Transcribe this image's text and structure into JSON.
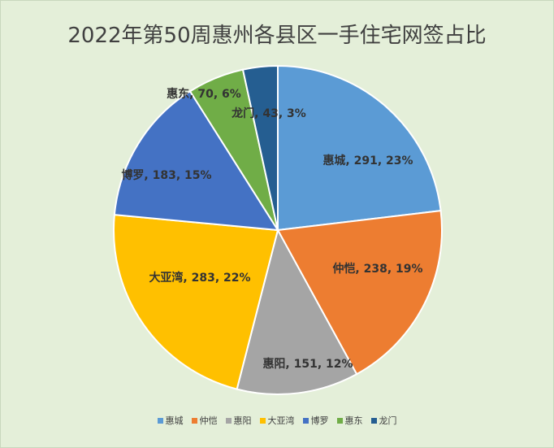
{
  "chart_data": {
    "type": "pie",
    "title": "2022年第50周惠州各县区一手住宅网签占比",
    "categories": [
      "惠城",
      "仲恺",
      "惠阳",
      "大亚湾",
      "博罗",
      "惠东",
      "龙门"
    ],
    "values": [
      291,
      238,
      151,
      283,
      183,
      70,
      43
    ],
    "percent_labels": [
      "23%",
      "19%",
      "12%",
      "22%",
      "15%",
      "6%",
      "3%"
    ],
    "data_labels": [
      "惠城, 291, 23%",
      "仲恺, 238, 19%",
      "惠阳, 151, 12%",
      "大亚湾, 283, 22%",
      "博罗, 183, 15%",
      "惠东, 70, 6%",
      "龙门, 43, 3%"
    ],
    "colors": [
      "#5b9bd5",
      "#ed7d31",
      "#a5a5a5",
      "#ffc000",
      "#4472c4",
      "#70ad47",
      "#255e91"
    ],
    "legend_position": "bottom",
    "start_angle": "12 o'clock, clockwise"
  }
}
